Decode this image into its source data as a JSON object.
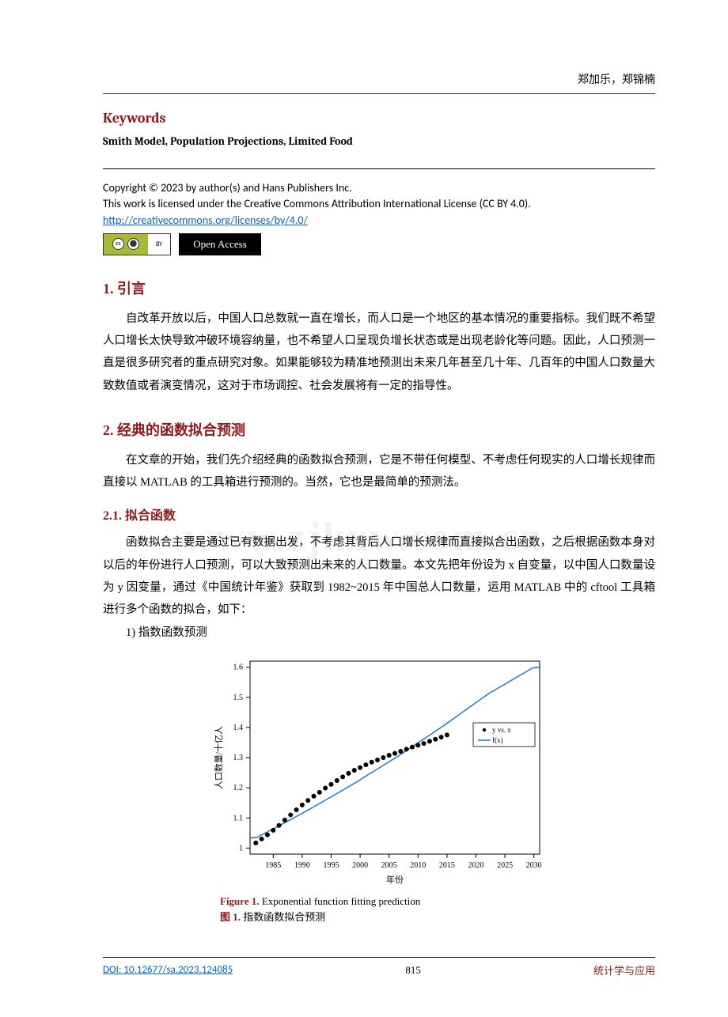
{
  "header": {
    "authors": "郑加乐，郑锦楠"
  },
  "keywords": {
    "heading": "Keywords",
    "line": "Smith Model, Population Projections, Limited Food"
  },
  "copyright": {
    "line1": "Copyright © 2023 by author(s) and Hans Publishers Inc.",
    "line2": "This work is licensed under the Creative Commons Attribution International License (CC BY 4.0).",
    "link": "http://creativecommons.org/licenses/by/4.0/",
    "oa_label": "Open Access",
    "cc_by": "BY"
  },
  "sections": {
    "s1": {
      "heading": "1. 引言",
      "p1": "自改革开放以后，中国人口总数就一直在增长，而人口是一个地区的基本情况的重要指标。我们既不希望人口增长太快导致冲破环境容纳量，也不希望人口呈现负增长状态或是出现老龄化等问题。因此，人口预测一直是很多研究者的重点研究对象。如果能够较为精准地预测出未来几年甚至几十年、几百年的中国人口数量大致数值或者演变情况，这对于市场调控、社会发展将有一定的指导性。"
    },
    "s2": {
      "heading": "2. 经典的函数拟合预测",
      "p1": "在文章的开始，我们先介绍经典的函数拟合预测，它是不带任何模型、不考虑任何现实的人口增长规律而直接以 MATLAB 的工具箱进行预测的。当然，它也是最简单的预测法。"
    },
    "s21": {
      "heading": "2.1. 拟合函数",
      "p1": "函数拟合主要是通过已有数据出发，不考虑其背后人口增长规律而直接拟合出函数，之后根据函数本身对以后的年份进行人口预测，可以大致预测出未来的人口数量。本文先把年份设为 x 自变量，以中国人口数量设为 y 因变量，通过《中国统计年鉴》获取到 1982~2015 年中国总人口数量，运用 MATLAB 中的 cftool 工具箱进行多个函数的拟合，如下：",
      "item1": "1) 指数函数预测"
    }
  },
  "chart": {
    "type": "line+scatter",
    "x_label": "年份",
    "y_label": "人口数量/十亿人",
    "x_ticks": [
      1985,
      1990,
      1995,
      2000,
      2005,
      2010,
      2015,
      2020,
      2025,
      2030
    ],
    "y_ticks": [
      1,
      1.1,
      1.2,
      1.3,
      1.4,
      1.5,
      1.6
    ],
    "xlim": [
      1981,
      2031
    ],
    "ylim": [
      0.98,
      1.62
    ],
    "label_fontsize": 11,
    "tick_fontsize": 10,
    "background_color": "#ffffff",
    "axis_color": "#000000",
    "axis_width": 1,
    "legend": {
      "items": [
        {
          "label": "y vs. x",
          "style": "scatter",
          "marker": "•",
          "color": "#000000"
        },
        {
          "label": "f(x)",
          "style": "line",
          "color": "#1f77d4"
        }
      ],
      "position": "right",
      "border_color": "#000000"
    },
    "scatter_data": {
      "x": [
        1982,
        1983,
        1984,
        1985,
        1986,
        1987,
        1988,
        1989,
        1990,
        1991,
        1992,
        1993,
        1994,
        1995,
        1996,
        1997,
        1998,
        1999,
        2000,
        2001,
        2002,
        2003,
        2004,
        2005,
        2006,
        2007,
        2008,
        2009,
        2010,
        2011,
        2012,
        2013,
        2014,
        2015
      ],
      "y": [
        1.017,
        1.03,
        1.044,
        1.059,
        1.075,
        1.093,
        1.11,
        1.127,
        1.143,
        1.158,
        1.172,
        1.185,
        1.199,
        1.211,
        1.224,
        1.236,
        1.248,
        1.258,
        1.267,
        1.276,
        1.285,
        1.292,
        1.3,
        1.308,
        1.314,
        1.321,
        1.328,
        1.335,
        1.341,
        1.347,
        1.354,
        1.361,
        1.368,
        1.375
      ],
      "color": "#000000",
      "marker_size": 3
    },
    "line_data": {
      "x": [
        1982,
        1990,
        1998,
        2006,
        2014,
        2022,
        2030
      ],
      "y": [
        1.033,
        1.115,
        1.203,
        1.298,
        1.4,
        1.51,
        1.6
      ],
      "color": "#1f77d4",
      "width": 1.5
    }
  },
  "figure": {
    "en_label": "Figure 1.",
    "en_text": " Exponential function fitting prediction",
    "cn_label": "图 1. ",
    "cn_text": "指数函数拟合预测"
  },
  "footer": {
    "doi": "DOI: 10.12677/sa.2023.124085",
    "page": "815",
    "journal": "统计学与应用"
  },
  "watermark": "www.zjkxw.com.cn"
}
